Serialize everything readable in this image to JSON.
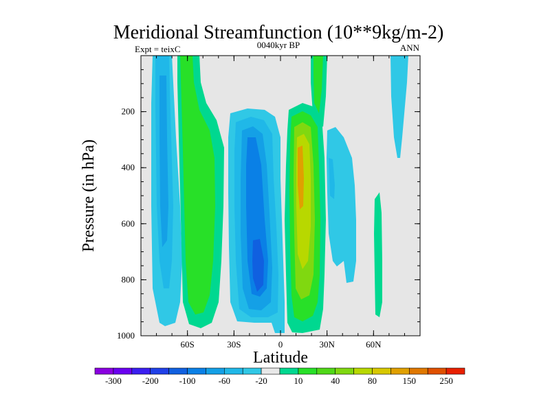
{
  "chart_data": {
    "type": "contour",
    "title": "Meridional Streamfunction (10**9kg/m-2)",
    "subtitle_left": "Expt = teixC",
    "subtitle_center": "0040kyr BP",
    "subtitle_right": "ANN",
    "xlabel": "Latitude",
    "ylabel": "Pressure (in hPa)",
    "xlim": [
      -90,
      90
    ],
    "ylim": [
      0,
      1000
    ],
    "y_inverted": true,
    "x_ticks": [
      {
        "value": -60,
        "label": "60S"
      },
      {
        "value": -30,
        "label": "30S"
      },
      {
        "value": 0,
        "label": "0"
      },
      {
        "value": 30,
        "label": "30N"
      },
      {
        "value": 60,
        "label": "60N"
      }
    ],
    "y_ticks": [
      {
        "value": 200,
        "label": "200"
      },
      {
        "value": 400,
        "label": "400"
      },
      {
        "value": 600,
        "label": "600"
      },
      {
        "value": 800,
        "label": "800"
      },
      {
        "value": 1000,
        "label": "1000"
      }
    ],
    "background_color": "#e6e6e6",
    "colorbar": {
      "labels": [
        "-300",
        "-200",
        "-100",
        "-60",
        "-20",
        "10",
        "40",
        "80",
        "150",
        "250"
      ],
      "colors": [
        "#8a00e0",
        "#6a00f0",
        "#3a1ef0",
        "#2040e8",
        "#1060e0",
        "#0a80e6",
        "#14a0e6",
        "#20b8e8",
        "#30c8e6",
        "#e8e8e8",
        "#00d890",
        "#28e028",
        "#50d818",
        "#80d810",
        "#b8d800",
        "#d8c800",
        "#e0a000",
        "#e07800",
        "#e05000",
        "#e82000"
      ]
    },
    "features": [
      {
        "name": "SH polar cell",
        "sign": "negative",
        "peak_lat": -70,
        "peak_pressure": 650,
        "peak_level": "-60"
      },
      {
        "name": "SH Ferrel cell",
        "sign": "positive",
        "peak_lat": -50,
        "peak_pressure": 550,
        "peak_level": "40"
      },
      {
        "name": "SH Hadley cell",
        "sign": "negative",
        "peak_lat": -12,
        "peak_pressure": 750,
        "peak_level": "-200"
      },
      {
        "name": "NH Hadley cell",
        "sign": "positive",
        "peak_lat": 12,
        "peak_pressure": 450,
        "peak_level": "150"
      },
      {
        "name": "NH Ferrel cell",
        "sign": "negative",
        "peak_lat": 35,
        "peak_pressure": 450,
        "peak_level": "-20"
      },
      {
        "name": "NH polar cell",
        "sign": "positive",
        "peak_lat": 63,
        "peak_pressure": 700,
        "peak_level": "10"
      },
      {
        "name": "NH upper cell",
        "sign": "negative",
        "peak_lat": 82,
        "peak_pressure": 50,
        "peak_level": "-20"
      }
    ]
  }
}
